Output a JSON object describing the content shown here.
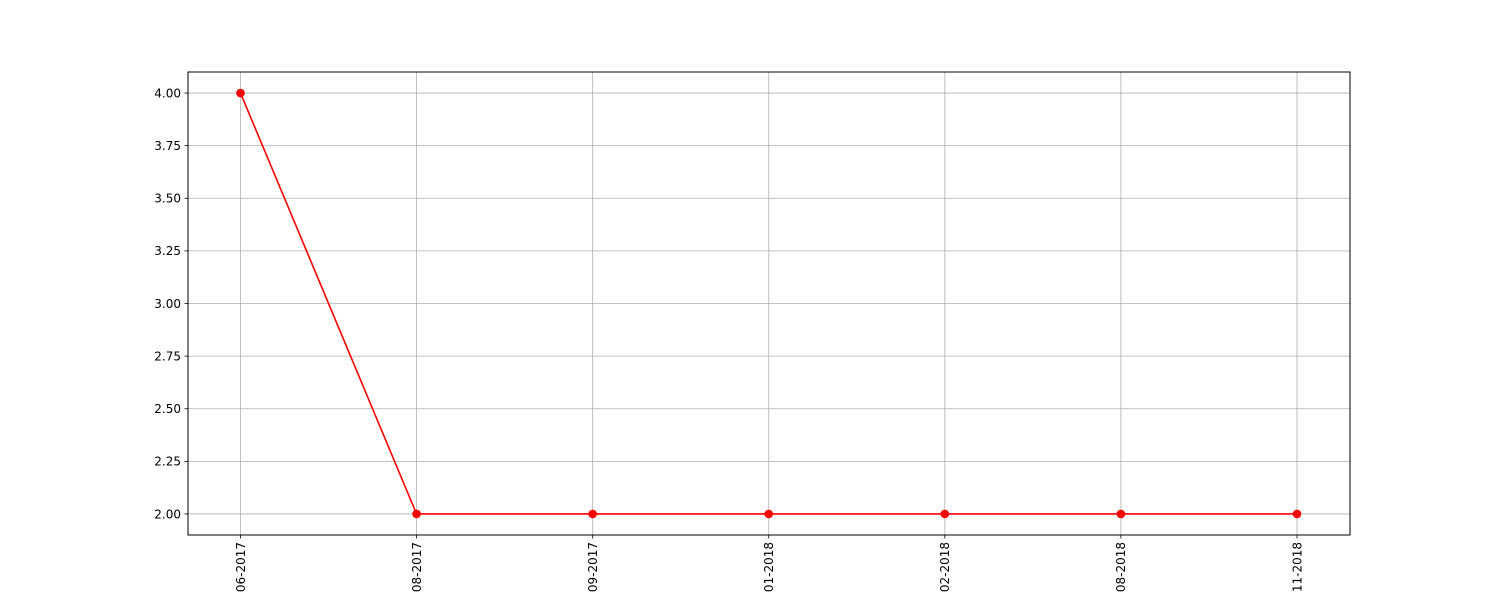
{
  "chart_data": {
    "type": "line",
    "categories": [
      "06-2017",
      "08-2017",
      "09-2017",
      "01-2018",
      "02-2018",
      "08-2018",
      "11-2018"
    ],
    "values": [
      4,
      2,
      2,
      2,
      2,
      2,
      2
    ],
    "yticks": [
      "2.00",
      "2.25",
      "2.50",
      "2.75",
      "3.00",
      "3.25",
      "3.50",
      "3.75",
      "4.00"
    ],
    "ylim": [
      1.9,
      4.1
    ],
    "grid": true,
    "line_color": "#ff0000",
    "marker_color": "#ff0000",
    "marker": "circle",
    "title": "",
    "xlabel": "",
    "ylabel": ""
  }
}
